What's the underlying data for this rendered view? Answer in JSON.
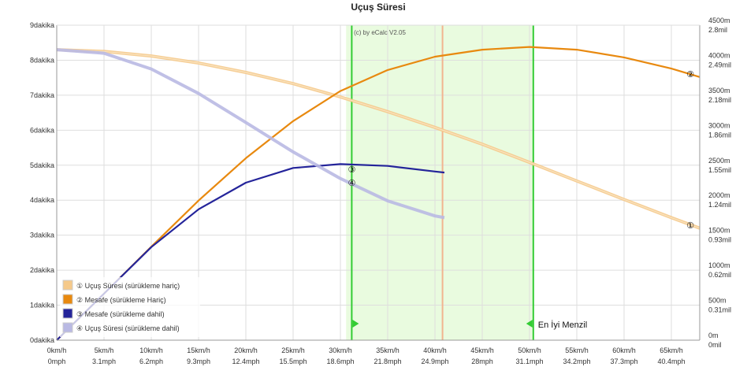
{
  "chart_data": {
    "type": "line",
    "title": "Uçuş Süresi",
    "watermark": "(c) by eCalc  V2.05",
    "x_axis": {
      "unit": "km/h",
      "min": 0,
      "max": 68,
      "ticks": [
        0,
        5,
        10,
        15,
        20,
        25,
        30,
        35,
        40,
        45,
        50,
        55,
        60,
        65
      ],
      "tick_labels_kmh": [
        "0km/h",
        "5km/h",
        "10km/h",
        "15km/h",
        "20km/h",
        "25km/h",
        "30km/h",
        "35km/h",
        "40km/h",
        "45km/h",
        "50km/h",
        "55km/h",
        "60km/h",
        "65km/h"
      ],
      "tick_labels_mph": [
        "0mph",
        "3.1mph",
        "6.2mph",
        "9.3mph",
        "12.4mph",
        "15.5mph",
        "18.6mph",
        "21.8mph",
        "24.9mph",
        "28mph",
        "31.1mph",
        "34.2mph",
        "37.3mph",
        "40.4mph"
      ]
    },
    "y_left": {
      "unit": "dakika",
      "min": 0,
      "max": 9,
      "tick_labels": [
        "0dakika",
        "1dakika",
        "2dakika",
        "3dakika",
        "4dakika",
        "5dakika",
        "6dakika",
        "7dakika",
        "8dakika",
        "9dakika"
      ]
    },
    "y_right": {
      "unit": "m",
      "min": 0,
      "max": 4500,
      "ticks": [
        0,
        500,
        1000,
        1500,
        2000,
        2500,
        3000,
        3500,
        4000,
        4500
      ],
      "tick_labels_m": [
        "0m",
        "500m",
        "1000m",
        "1500m",
        "2000m",
        "2500m",
        "3000m",
        "3500m",
        "4000m",
        "4500m"
      ],
      "tick_labels_mil": [
        "0mil",
        "0.31mil",
        "0.62mil",
        "0.93mil",
        "1.24mil",
        "1.55mil",
        "1.86mil",
        "2.18mil",
        "2.49mil",
        "2.8mil"
      ]
    },
    "grid": true,
    "legend_position": "bottom-left",
    "series": [
      {
        "name": "① Uçuş Süresi (sürükleme hariç)",
        "marker": "①",
        "axis": "left",
        "color": "#f5c98a",
        "x": [
          0,
          5,
          10,
          15,
          20,
          25,
          30,
          35,
          40,
          45,
          50,
          55,
          60,
          65,
          68
        ],
        "y": [
          8.3,
          8.25,
          8.12,
          7.92,
          7.65,
          7.33,
          6.95,
          6.53,
          6.08,
          5.6,
          5.08,
          4.55,
          4.02,
          3.5,
          3.2
        ]
      },
      {
        "name": "② Mesafe (sürükleme Hariç)",
        "marker": "②",
        "axis": "right",
        "color": "#e8890f",
        "x": [
          0,
          5,
          10,
          15,
          20,
          25,
          30,
          35,
          40,
          45,
          50,
          55,
          60,
          65,
          68
        ],
        "y": [
          0,
          665,
          1335,
          1995,
          2600,
          3130,
          3560,
          3860,
          4050,
          4150,
          4190,
          4150,
          4040,
          3880,
          3760
        ]
      },
      {
        "name": "③ Mesafe (sürükleme dahil)",
        "marker": "③",
        "axis": "right",
        "color": "#24249a",
        "x": [
          0,
          5,
          10,
          15,
          20,
          25,
          30,
          35,
          40,
          41
        ],
        "y": [
          0,
          665,
          1330,
          1870,
          2250,
          2460,
          2515,
          2490,
          2410,
          2395
        ]
      },
      {
        "name": "④ Uçuş Süresi (sürükleme dahil)",
        "marker": "④",
        "axis": "left",
        "color": "#b9b9e3",
        "x": [
          0,
          5,
          10,
          15,
          20,
          25,
          30,
          35,
          40,
          41
        ],
        "y": [
          8.3,
          8.2,
          7.75,
          7.05,
          6.22,
          5.38,
          4.62,
          3.98,
          3.55,
          3.5
        ]
      }
    ],
    "markers": [
      {
        "series_index": 0,
        "label": "①",
        "x": 67,
        "y": 3.28,
        "axis": "left"
      },
      {
        "series_index": 1,
        "label": "②",
        "x": 67,
        "y": 3800,
        "axis": "right"
      },
      {
        "series_index": 2,
        "label": "③",
        "x": 31.2,
        "y": 2440,
        "axis": "right"
      },
      {
        "series_index": 3,
        "label": "④",
        "x": 31.2,
        "y": 4.5,
        "axis": "left"
      }
    ],
    "shaded_region": {
      "x_start": 30.6,
      "x_end": 50.4,
      "color": "#e9fbdf"
    },
    "vertical_lines": [
      {
        "x": 31.2,
        "color": "#33cc33",
        "arrow_direction": "right",
        "label": ""
      },
      {
        "x": 50.4,
        "color": "#33cc33",
        "arrow_direction": "left",
        "label": "En İyi Menzil"
      },
      {
        "x": 40.8,
        "color": "#f2b48f",
        "arrow_direction": "",
        "label": ""
      }
    ]
  }
}
